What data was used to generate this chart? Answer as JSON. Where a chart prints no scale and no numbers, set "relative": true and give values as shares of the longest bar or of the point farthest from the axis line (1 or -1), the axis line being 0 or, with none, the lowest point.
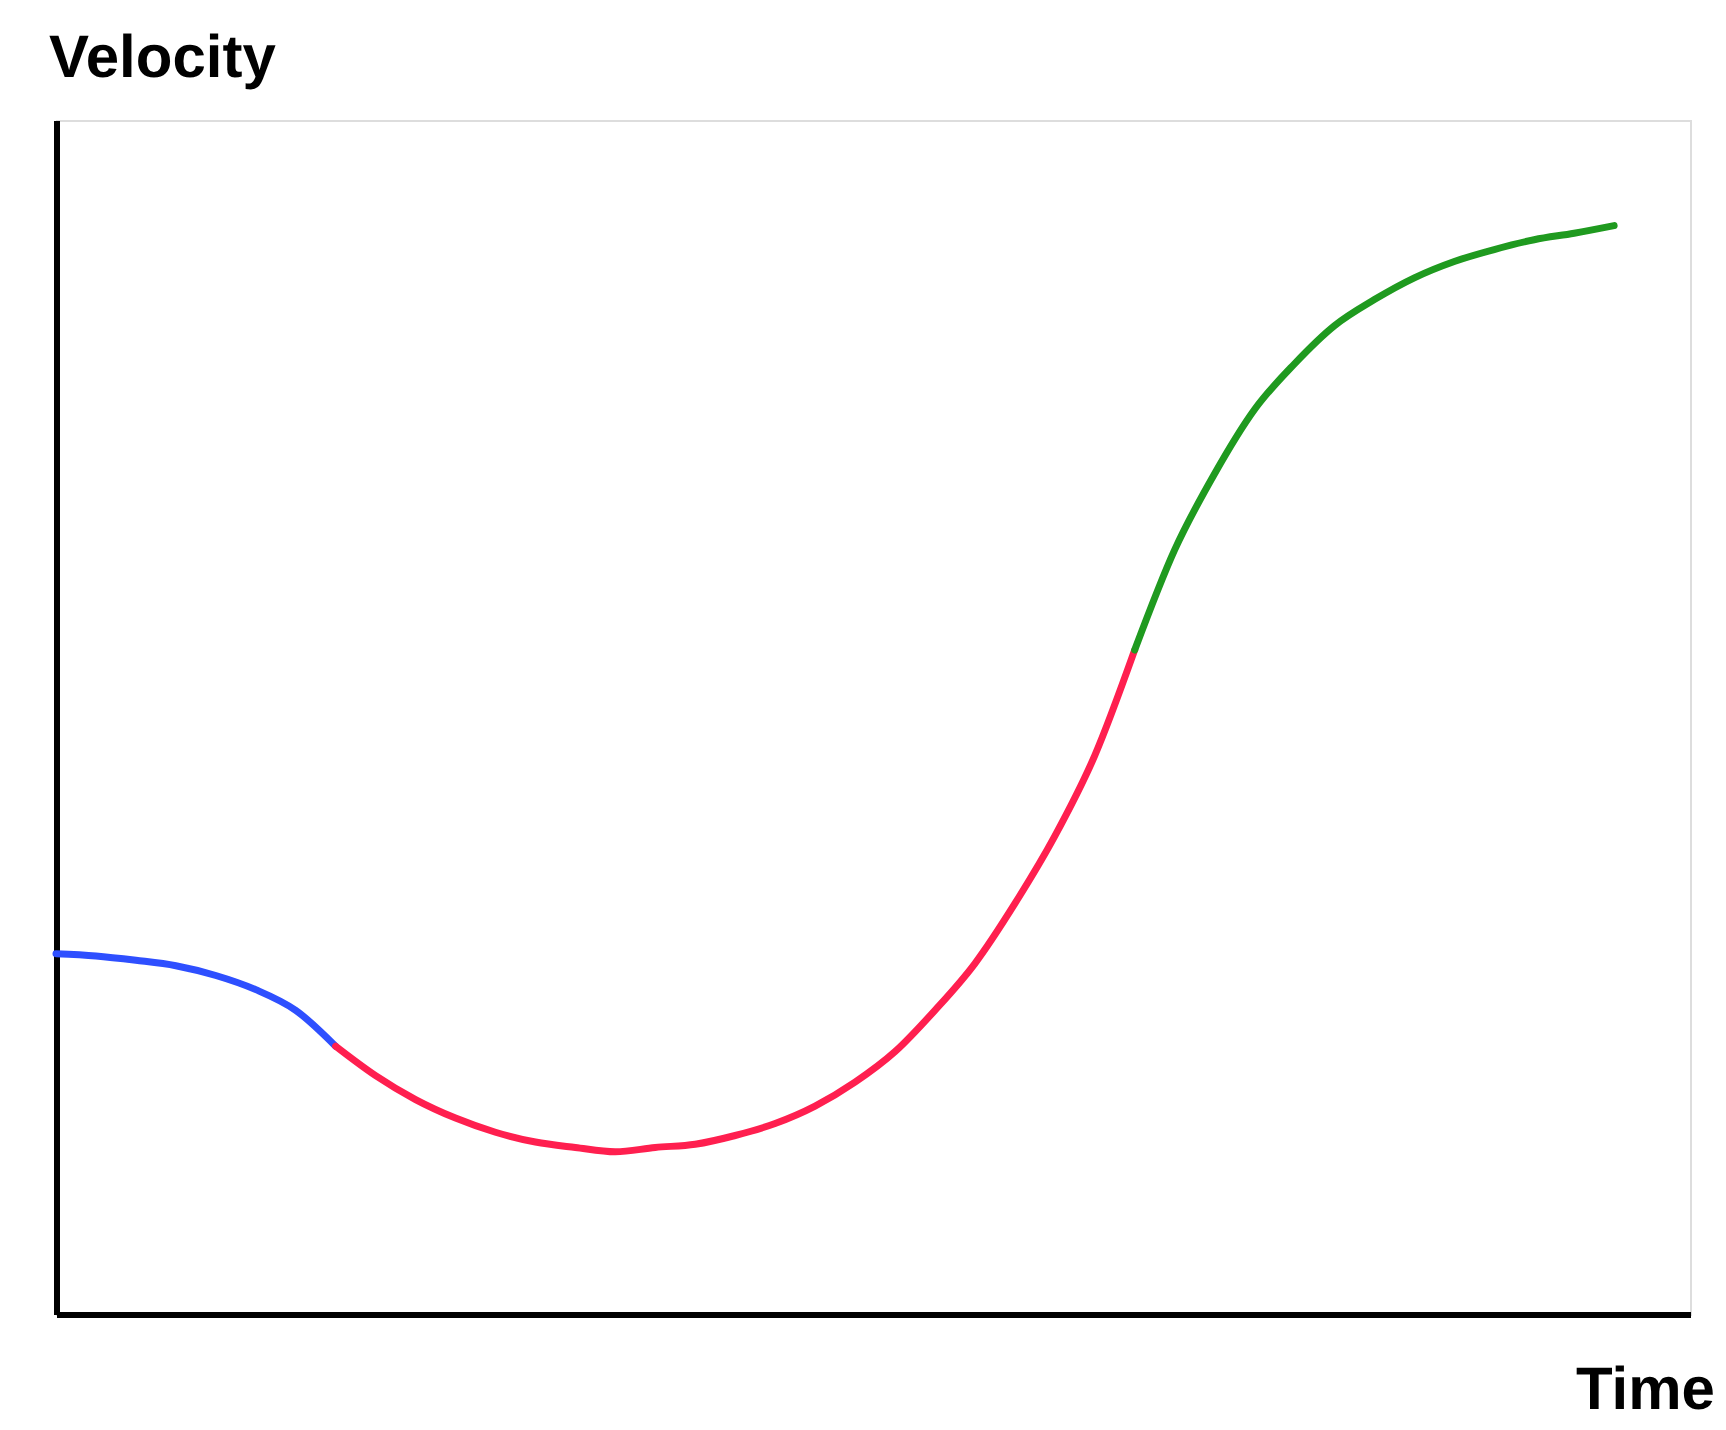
{
  "chart_data": {
    "type": "line",
    "relative": true,
    "xlabel": "Time",
    "ylabel": "Velocity",
    "tick_labels": false,
    "grid": false,
    "legend": false,
    "marker": "none",
    "line_style": "solid",
    "categories": [
      null,
      null,
      null,
      null,
      null,
      null,
      null,
      null,
      null,
      null,
      null,
      null,
      null,
      null,
      null,
      null,
      null,
      null,
      null,
      null,
      null,
      null,
      null,
      null,
      null,
      null,
      null,
      null,
      null,
      null,
      null,
      null,
      null,
      null,
      null,
      null,
      null,
      null,
      null,
      null
    ],
    "series": [
      {
        "color": "#2e4fff",
        "values": [
          0.331,
          0.329,
          0.325,
          0.32,
          0.311,
          0.298,
          0.279,
          0.246,
          null,
          null,
          null,
          null,
          null,
          null,
          null,
          null,
          null,
          null,
          null,
          null,
          null,
          null,
          null,
          null,
          null,
          null,
          null,
          null,
          null,
          null,
          null,
          null,
          null,
          null,
          null,
          null,
          null,
          null,
          null,
          null
        ]
      },
      {
        "color": "#ff1f4f",
        "values": [
          null,
          null,
          null,
          null,
          null,
          null,
          null,
          0.246,
          0.219,
          0.197,
          0.18,
          0.167,
          0.158,
          0.153,
          0.149,
          0.153,
          0.156,
          0.164,
          0.175,
          0.191,
          0.213,
          0.241,
          0.279,
          0.322,
          0.377,
          0.439,
          0.513,
          0.61,
          null,
          null,
          null,
          null,
          null,
          null,
          null,
          null,
          null,
          null,
          null,
          null
        ]
      },
      {
        "color": "#1f9a1f",
        "values": [
          null,
          null,
          null,
          null,
          null,
          null,
          null,
          null,
          null,
          null,
          null,
          null,
          null,
          null,
          null,
          null,
          null,
          null,
          null,
          null,
          null,
          null,
          null,
          null,
          null,
          null,
          null,
          0.61,
          0.702,
          0.772,
          0.831,
          0.873,
          0.908,
          0.932,
          0.952,
          0.967,
          0.978,
          0.987,
          0.993,
          1
        ]
      }
    ]
  }
}
